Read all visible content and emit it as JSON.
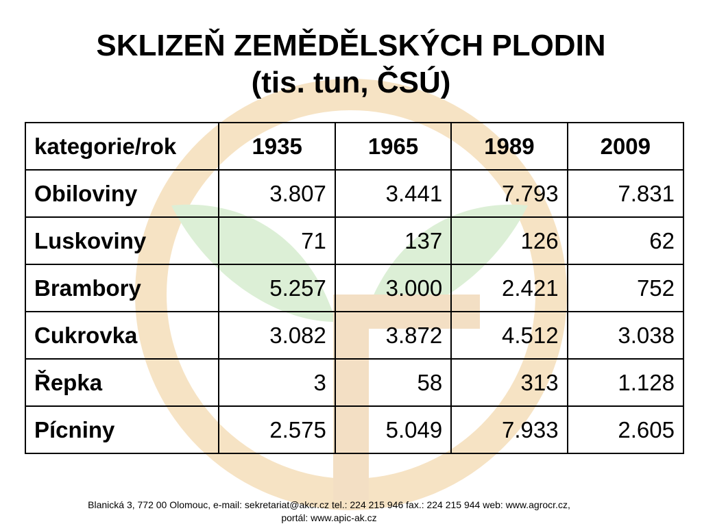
{
  "slide": {
    "title_line1": "SKLIZEŇ  ZEMĚDĚLSKÝCH  PLODIN",
    "title_line2": "(tis. tun, ČSÚ)"
  },
  "table": {
    "corner_header": "kategorie/rok",
    "years": [
      "1935",
      "1965",
      "1989",
      "2009"
    ],
    "rows": [
      {
        "category": "Obiloviny",
        "values": [
          "3.807",
          "3.441",
          "7.793",
          "7.831"
        ]
      },
      {
        "category": "Luskoviny",
        "values": [
          "71",
          "137",
          "126",
          "62"
        ]
      },
      {
        "category": "Brambory",
        "values": [
          "5.257",
          "3.000",
          "2.421",
          "752"
        ]
      },
      {
        "category": "Cukrovka",
        "values": [
          "3.082",
          "3.872",
          "4.512",
          "3.038"
        ]
      },
      {
        "category": "Řepka",
        "values": [
          "3",
          "58",
          "313",
          "1.128"
        ]
      },
      {
        "category": "Pícniny",
        "values": [
          "2.575",
          "5.049",
          "7.933",
          "2.605"
        ]
      }
    ]
  },
  "footer": {
    "line1": "Blanická 3, 772 00 Olomouc, e-mail: sekretariat@akcr.cz tel.: 224 215 946 fax.: 224 215 944 web: www.agrocr.cz,",
    "line2": "portál: www.apic-ak.cz"
  },
  "watermark": {
    "icon": "sprout-in-circle-logo",
    "ring_color": "#f6e3c4",
    "leaf_color": "#dcefd6",
    "stem_color": "#f3dfc4"
  }
}
